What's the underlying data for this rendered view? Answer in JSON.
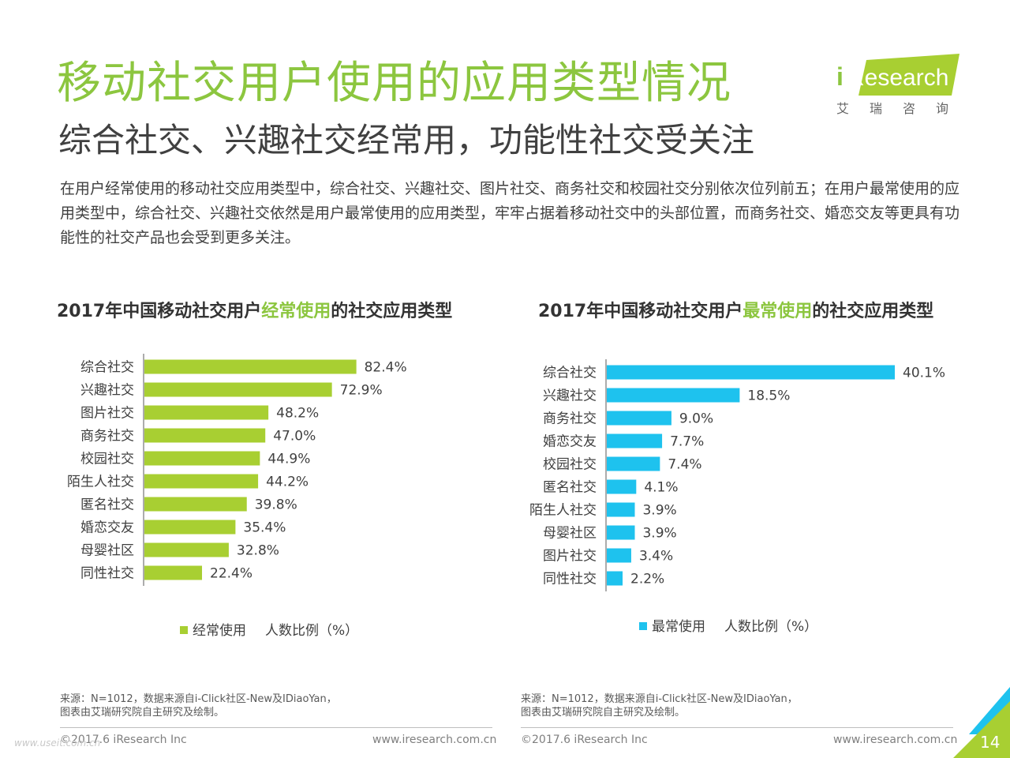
{
  "header": {
    "title": "移动社交用户使用的应用类型情况",
    "subtitle": "综合社交、兴趣社交经常用，功能性社交受关注",
    "description": "在用户经常使用的移动社交应用类型中，综合社交、兴趣社交、图片社交、商务社交和校园社交分别依次位列前五；在用户最常使用的应用类型中，综合社交、兴趣社交依然是用户最常使用的应用类型，牢牢占据着移动社交中的头部位置，而商务社交、婚恋交友等更具有功能性的社交产品也会受到更多关注。"
  },
  "logo": {
    "brand_i": "i",
    "brand_rest": "Research",
    "cn": "艾瑞咨询"
  },
  "colors": {
    "green": "#a8cf32",
    "blue": "#1ec2ee",
    "title_green": "#8cc63f"
  },
  "chart_data": [
    {
      "type": "bar",
      "orientation": "horizontal",
      "title_parts": [
        "2017年中国移动社交用户",
        "经常使用",
        "的社交应用类型"
      ],
      "categories": [
        "综合社交",
        "兴趣社交",
        "图片社交",
        "商务社交",
        "校园社交",
        "陌生人社交",
        "匿名社交",
        "婚恋交友",
        "母婴社区",
        "同性社交"
      ],
      "values": [
        82.4,
        72.9,
        48.2,
        47.0,
        44.9,
        44.2,
        39.8,
        35.4,
        32.8,
        22.4
      ],
      "value_labels": [
        "82.4%",
        "72.9%",
        "48.2%",
        "47.0%",
        "44.9%",
        "44.2%",
        "39.8%",
        "35.4%",
        "32.8%",
        "22.4%"
      ],
      "series_name": "经常使用",
      "unit_label": "人数比例（%）",
      "color": "#a8cf32",
      "xlim": [
        0,
        100
      ]
    },
    {
      "type": "bar",
      "orientation": "horizontal",
      "title_parts": [
        "2017年中国移动社交用户",
        "最常使用",
        "的社交应用类型"
      ],
      "categories": [
        "综合社交",
        "兴趣社交",
        "商务社交",
        "婚恋交友",
        "校园社交",
        "匿名社交",
        "陌生人社交",
        "母婴社区",
        "图片社交",
        "同性社交"
      ],
      "values": [
        40.1,
        18.5,
        9.0,
        7.7,
        7.4,
        4.1,
        3.9,
        3.9,
        3.4,
        2.2
      ],
      "value_labels": [
        "40.1%",
        "18.5%",
        "9.0%",
        "7.7%",
        "7.4%",
        "4.1%",
        "3.9%",
        "3.9%",
        "3.4%",
        "2.2%"
      ],
      "series_name": "最常使用",
      "unit_label": "人数比例（%）",
      "color": "#1ec2ee",
      "xlim": [
        0,
        40.1
      ]
    }
  ],
  "sources": {
    "left": [
      "来源：N=1012，数据来源自i-Click社区-New及IDiaoYan，",
      "图表由艾瑞研究院自主研究及绘制。"
    ],
    "right": [
      "来源：N=1012，数据来源自i-Click社区-New及IDiaoYan，",
      "图表由艾瑞研究院自主研究及绘制。"
    ]
  },
  "footer": {
    "copyright": "©2017.6 iResearch Inc",
    "website": "www.iresearch.com.cn",
    "page_number": "14",
    "watermark": "www.useit.com.cn"
  }
}
